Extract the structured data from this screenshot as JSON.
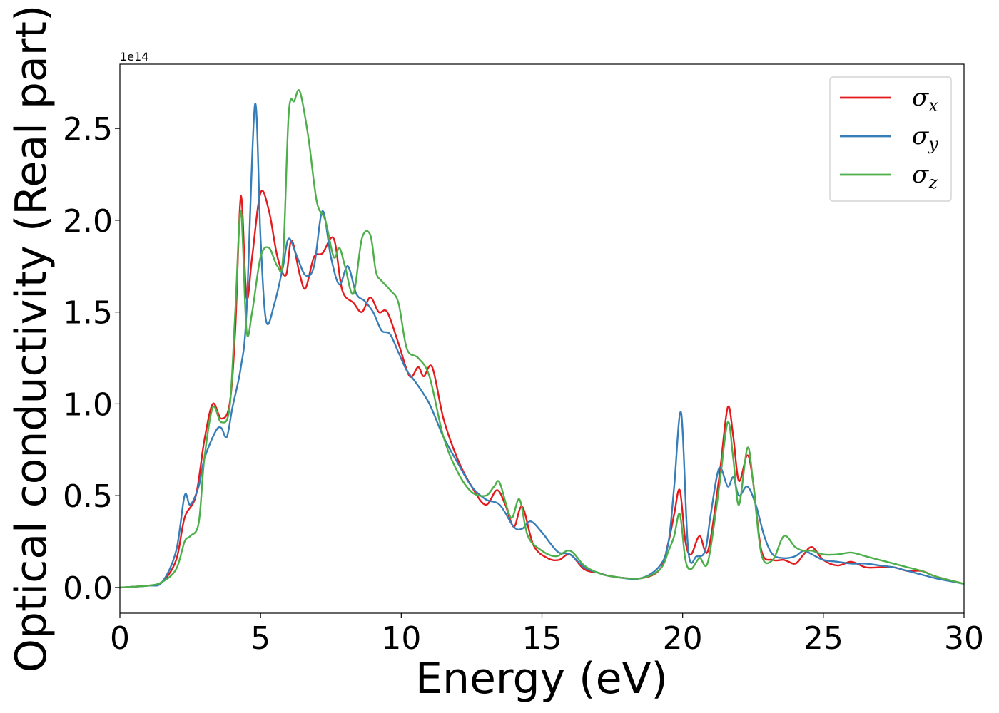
{
  "chart_data": {
    "type": "line",
    "xlabel": "Energy (eV)",
    "ylabel": "Optical conductivity (Real part)",
    "y_offset_label": "1e14",
    "xlim": [
      0,
      30
    ],
    "ylim": [
      -0.14,
      2.85
    ],
    "x_ticks": [
      0,
      5,
      10,
      15,
      20,
      25,
      30
    ],
    "x_tick_labels": [
      "0",
      "5",
      "10",
      "15",
      "20",
      "25",
      "30"
    ],
    "y_ticks": [
      0.0,
      0.5,
      1.0,
      1.5,
      2.0,
      2.5
    ],
    "y_tick_labels": [
      "0.0",
      "0.5",
      "1.0",
      "1.5",
      "2.0",
      "2.5"
    ],
    "grid": false,
    "legend_position": "top-right",
    "series": [
      {
        "name": "σx",
        "legend_symbol": "σ",
        "legend_subscript": "x",
        "color": "#e41a1c",
        "x": [
          0,
          1,
          1.5,
          2,
          2.3,
          2.7,
          3.0,
          3.3,
          3.6,
          3.9,
          4.1,
          4.3,
          4.5,
          4.7,
          5.0,
          5.3,
          5.6,
          5.9,
          6.1,
          6.4,
          6.6,
          6.9,
          7.2,
          7.6,
          7.9,
          8.3,
          8.6,
          8.9,
          9.2,
          9.5,
          9.9,
          10.3,
          10.6,
          10.8,
          11.1,
          11.5,
          12,
          12.5,
          13,
          13.4,
          13.7,
          14,
          14.3,
          14.7,
          15.2,
          15.6,
          16,
          16.5,
          17,
          17.5,
          18.5,
          19.2,
          19.5,
          19.7,
          19.9,
          20.1,
          20.3,
          20.6,
          20.9,
          21.3,
          21.6,
          21.8,
          22.0,
          22.3,
          22.5,
          22.8,
          23.2,
          23.6,
          24,
          24.3,
          24.6,
          25,
          25.5,
          26,
          26.5,
          27,
          27.5,
          28,
          28.5,
          29,
          30
        ],
        "y": [
          0,
          0.01,
          0.03,
          0.15,
          0.38,
          0.5,
          0.8,
          1.0,
          0.92,
          1.0,
          1.4,
          2.13,
          1.58,
          1.8,
          2.15,
          2.05,
          1.8,
          1.7,
          1.89,
          1.7,
          1.63,
          1.8,
          1.82,
          1.9,
          1.62,
          1.55,
          1.5,
          1.58,
          1.5,
          1.5,
          1.33,
          1.15,
          1.2,
          1.15,
          1.2,
          0.92,
          0.7,
          0.55,
          0.45,
          0.53,
          0.45,
          0.33,
          0.44,
          0.23,
          0.16,
          0.15,
          0.18,
          0.1,
          0.08,
          0.06,
          0.05,
          0.1,
          0.25,
          0.4,
          0.53,
          0.25,
          0.18,
          0.28,
          0.2,
          0.6,
          0.98,
          0.82,
          0.58,
          0.72,
          0.58,
          0.2,
          0.15,
          0.15,
          0.13,
          0.18,
          0.22,
          0.15,
          0.12,
          0.14,
          0.11,
          0.11,
          0.11,
          0.09,
          0.09,
          0.06,
          0.02
        ]
      },
      {
        "name": "σy",
        "legend_symbol": "σ",
        "legend_subscript": "y",
        "color": "#377eb8",
        "x": [
          0,
          1,
          1.5,
          2,
          2.3,
          2.5,
          2.8,
          3.0,
          3.4,
          3.6,
          3.8,
          4.0,
          4.3,
          4.5,
          4.8,
          5.0,
          5.2,
          5.5,
          5.8,
          6.0,
          6.3,
          6.6,
          6.9,
          7.2,
          7.5,
          7.8,
          8.1,
          8.4,
          8.7,
          9.0,
          9.3,
          9.6,
          9.9,
          10.2,
          10.5,
          11.0,
          11.5,
          12,
          12.5,
          13,
          13.5,
          14,
          14.3,
          14.6,
          15.0,
          15.3,
          15.6,
          16,
          16.5,
          17,
          17.5,
          18.5,
          19.2,
          19.5,
          19.7,
          19.95,
          20.2,
          20.5,
          20.8,
          21.0,
          21.3,
          21.6,
          21.8,
          22.0,
          22.3,
          22.6,
          22.9,
          23.2,
          23.6,
          24,
          24.3,
          24.6,
          25,
          25.5,
          26,
          26.5,
          27,
          27.5,
          28,
          28.5,
          29,
          30
        ],
        "y": [
          0,
          0.01,
          0.03,
          0.2,
          0.5,
          0.45,
          0.55,
          0.7,
          0.85,
          0.87,
          0.82,
          0.98,
          1.2,
          1.5,
          2.63,
          1.9,
          1.45,
          1.55,
          1.75,
          1.9,
          1.8,
          1.7,
          1.75,
          2.05,
          1.8,
          1.65,
          1.75,
          1.6,
          1.56,
          1.5,
          1.4,
          1.38,
          1.28,
          1.18,
          1.12,
          1.0,
          0.82,
          0.68,
          0.55,
          0.48,
          0.45,
          0.33,
          0.32,
          0.36,
          0.3,
          0.24,
          0.19,
          0.18,
          0.11,
          0.08,
          0.06,
          0.05,
          0.12,
          0.25,
          0.55,
          0.95,
          0.2,
          0.17,
          0.2,
          0.4,
          0.65,
          0.55,
          0.6,
          0.5,
          0.55,
          0.45,
          0.28,
          0.18,
          0.16,
          0.17,
          0.2,
          0.18,
          0.15,
          0.14,
          0.13,
          0.13,
          0.12,
          0.11,
          0.09,
          0.07,
          0.05,
          0.02
        ]
      },
      {
        "name": "σz",
        "legend_symbol": "σ",
        "legend_subscript": "z",
        "color": "#4daf4a",
        "x": [
          0,
          1,
          1.5,
          2,
          2.3,
          2.5,
          2.8,
          3.0,
          3.3,
          3.6,
          3.9,
          4.1,
          4.3,
          4.5,
          4.7,
          5.0,
          5.3,
          5.6,
          5.8,
          6.0,
          6.2,
          6.4,
          6.7,
          7.0,
          7.3,
          7.6,
          7.8,
          8.0,
          8.3,
          8.6,
          8.9,
          9.1,
          9.3,
          9.6,
          9.9,
          10.2,
          10.6,
          11.0,
          11.5,
          12,
          12.5,
          13,
          13.3,
          13.5,
          13.9,
          14.2,
          14.5,
          15,
          15.5,
          16,
          16.5,
          17,
          17.5,
          18.5,
          19.2,
          19.5,
          19.7,
          19.9,
          20.1,
          20.3,
          20.6,
          20.9,
          21.3,
          21.6,
          21.8,
          22.0,
          22.3,
          22.5,
          22.8,
          23.2,
          23.6,
          24,
          24.3,
          24.6,
          25,
          25.5,
          26,
          26.5,
          27,
          27.5,
          28,
          28.5,
          29,
          30
        ],
        "y": [
          0,
          0.01,
          0.03,
          0.1,
          0.25,
          0.28,
          0.35,
          0.7,
          0.98,
          0.9,
          0.98,
          1.5,
          2.05,
          1.4,
          1.5,
          1.8,
          1.85,
          1.75,
          1.8,
          2.58,
          2.65,
          2.7,
          2.45,
          2.1,
          2.0,
          1.8,
          1.85,
          1.75,
          1.6,
          1.9,
          1.92,
          1.72,
          1.67,
          1.62,
          1.55,
          1.3,
          1.25,
          1.15,
          0.82,
          0.63,
          0.52,
          0.5,
          0.55,
          0.57,
          0.38,
          0.48,
          0.28,
          0.2,
          0.17,
          0.2,
          0.12,
          0.08,
          0.06,
          0.05,
          0.1,
          0.2,
          0.28,
          0.4,
          0.15,
          0.1,
          0.16,
          0.14,
          0.55,
          0.9,
          0.7,
          0.45,
          0.76,
          0.58,
          0.18,
          0.15,
          0.28,
          0.22,
          0.2,
          0.2,
          0.18,
          0.18,
          0.19,
          0.17,
          0.15,
          0.13,
          0.11,
          0.09,
          0.06,
          0.02
        ]
      }
    ]
  }
}
